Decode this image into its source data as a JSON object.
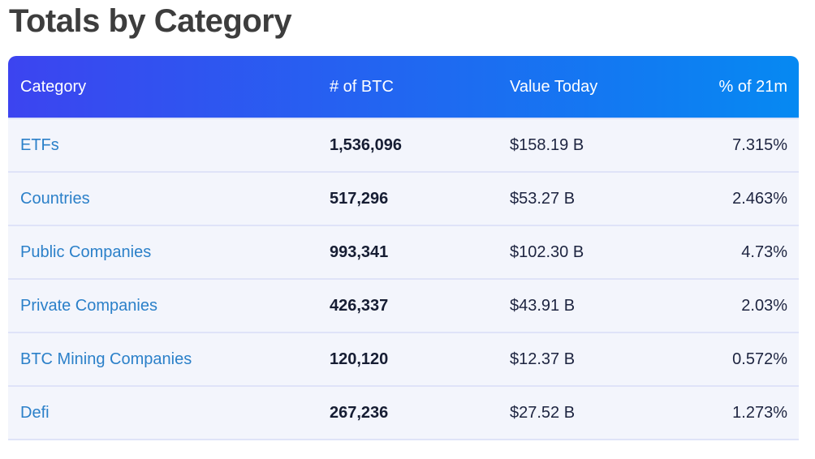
{
  "page": {
    "title": "Totals by Category"
  },
  "table": {
    "columns": [
      {
        "label": "Category",
        "align": "left"
      },
      {
        "label": "# of BTC",
        "align": "left"
      },
      {
        "label": "Value Today",
        "align": "left"
      },
      {
        "label": "% of 21m",
        "align": "right"
      }
    ],
    "rows": [
      {
        "category": "ETFs",
        "btc": "1,536,096",
        "value": "$158.19 B",
        "pct": "7.315%"
      },
      {
        "category": "Countries",
        "btc": "517,296",
        "value": "$53.27 B",
        "pct": "2.463%"
      },
      {
        "category": "Public Companies",
        "btc": "993,341",
        "value": "$102.30 B",
        "pct": "4.73%"
      },
      {
        "category": "Private Companies",
        "btc": "426,337",
        "value": "$43.91 B",
        "pct": "2.03%"
      },
      {
        "category": "BTC Mining Companies",
        "btc": "120,120",
        "value": "$12.37 B",
        "pct": "0.572%"
      },
      {
        "category": "Defi",
        "btc": "267,236",
        "value": "$27.52 B",
        "pct": "1.273%"
      }
    ]
  },
  "colors": {
    "header_gradient_start": "#3c44f0",
    "header_gradient_end": "#0689f2",
    "header_text": "#ffffff",
    "row_background": "#f3f5fc",
    "row_divider": "#dfe3f8",
    "category_link": "#2b80c9",
    "btc_number": "#161d33",
    "value_text": "#1d2440",
    "title_text": "#3d3d3d"
  }
}
